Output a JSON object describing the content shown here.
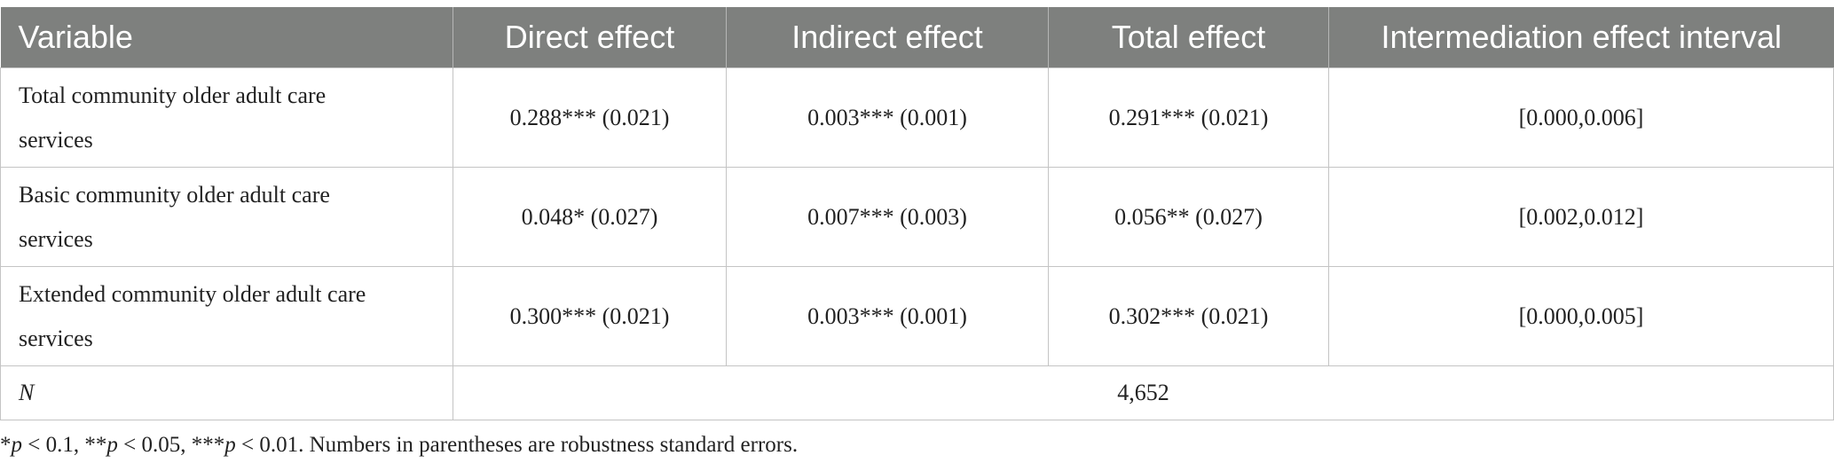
{
  "table": {
    "headers": [
      "Variable",
      "Direct effect",
      "Indirect effect",
      "Total effect",
      "Intermediation effect interval"
    ],
    "rows": [
      {
        "variable": "Total community older adult care services",
        "direct": "0.288*** (0.021)",
        "indirect": "0.003*** (0.001)",
        "total": "0.291*** (0.021)",
        "interval": "[0.000,0.006]"
      },
      {
        "variable": "Basic community older adult care services",
        "direct": "0.048* (0.027)",
        "indirect": "0.007*** (0.003)",
        "total": "0.056** (0.027)",
        "interval": "[0.002,0.012]"
      },
      {
        "variable": "Extended community older adult care services",
        "direct": "0.300*** (0.021)",
        "indirect": "0.003*** (0.001)",
        "total": "0.302*** (0.021)",
        "interval": "[0.000,0.005]"
      }
    ],
    "n_row": {
      "label": "N",
      "value": "4,652"
    }
  },
  "footnote": {
    "sig1_mark": "*",
    "sig1_var": "p",
    "sig1_cond": " < 0.1, ",
    "sig2_mark": "**",
    "sig2_var": "p",
    "sig2_cond": " < 0.05, ",
    "sig3_mark": "***",
    "sig3_var": "p",
    "sig3_cond": " < 0.01. ",
    "note": "Numbers in parentheses are robustness standard errors."
  },
  "colors": {
    "header_bg": "#7e807e",
    "header_text": "#ffffff",
    "grid_line": "#c4c4c4",
    "body_text": "#222222"
  }
}
